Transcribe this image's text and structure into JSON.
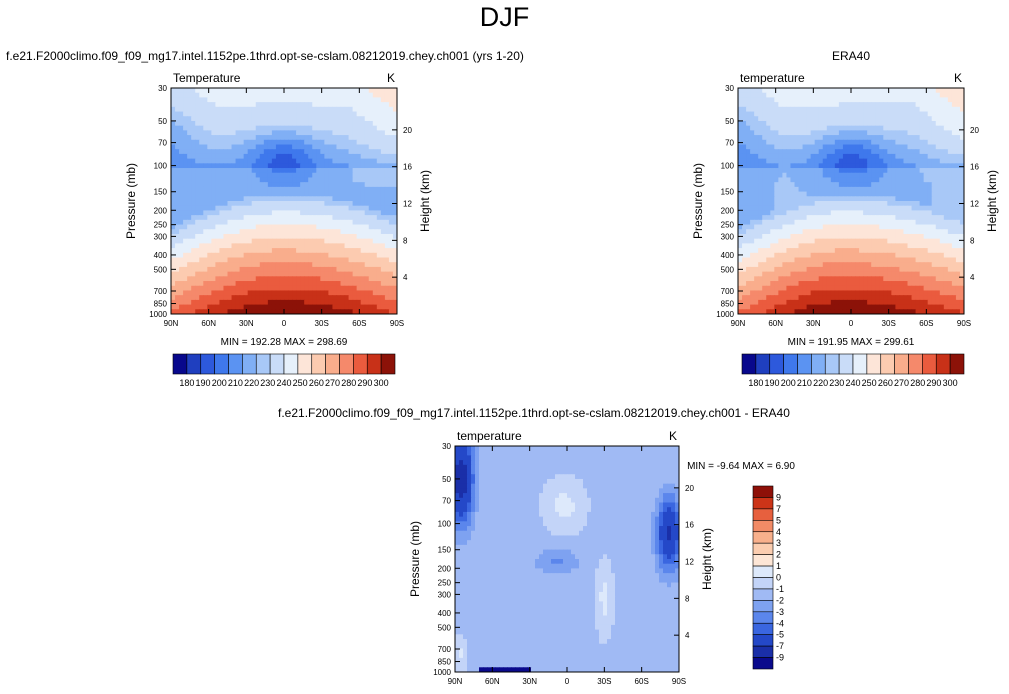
{
  "page_title": "DJF",
  "palette": {
    "temperature": [
      "#08088c",
      "#1f3fbf",
      "#2d59dc",
      "#3f78ec",
      "#5b93f2",
      "#80aff5",
      "#a8c8f7",
      "#c9dcf8",
      "#e6f0fb",
      "#fde5d8",
      "#fccbb0",
      "#f9ad8c",
      "#f5896b",
      "#ea5b3e",
      "#c83118",
      "#8c1208"
    ],
    "difference": [
      "#0a0a8c",
      "#1a2fa8",
      "#2448c8",
      "#3a66e0",
      "#5b86ec",
      "#7ea2f1",
      "#a0baf4",
      "#c3d4f8",
      "#dde9fb",
      "#fde6d6",
      "#fbcdb0",
      "#f8b08c",
      "#f28b66",
      "#e7603e",
      "#cc3418",
      "#8e1008"
    ]
  },
  "chart_data": [
    {
      "id": "model",
      "type": "heatmap",
      "subtitle": "f.e21.F2000climo.f09_f09_mg17.intel.1152pe.1thrd.opt-se-cslam.08212019.chey.ch001 (yrs 1-20)",
      "left_label": "Temperature",
      "right_label": "K",
      "ylabel": "Pressure (mb)",
      "ylabel_right": "Height (km)",
      "x_ticks": [
        "90N",
        "60N",
        "30N",
        "0",
        "30S",
        "60S",
        "90S"
      ],
      "y_ticks": [
        "30",
        "50",
        "70",
        "100",
        "150",
        "200",
        "250",
        "300",
        "400",
        "500",
        "700",
        "850",
        "1000"
      ],
      "height_ticks": [
        "20",
        "16",
        "12",
        "8",
        "4"
      ],
      "height_values": [
        20,
        16,
        12,
        8,
        4
      ],
      "min_max": "MIN = 192.28   MAX = 298.69",
      "colorbar_labels": [
        "180",
        "190",
        "200",
        "210",
        "220",
        "230",
        "240",
        "250",
        "260",
        "270",
        "280",
        "290",
        "300"
      ],
      "colorbar_levels": [
        180,
        185,
        190,
        195,
        200,
        205,
        210,
        220,
        230,
        240,
        250,
        260,
        270,
        280,
        290,
        300
      ],
      "grid": false
    },
    {
      "id": "obs",
      "type": "heatmap",
      "subtitle": "ERA40",
      "left_label": "temperature",
      "right_label": "K",
      "ylabel": "Pressure (mb)",
      "ylabel_right": "Height (km)",
      "x_ticks": [
        "90N",
        "60N",
        "30N",
        "0",
        "30S",
        "60S",
        "90S"
      ],
      "y_ticks": [
        "30",
        "50",
        "70",
        "100",
        "150",
        "200",
        "250",
        "300",
        "400",
        "500",
        "700",
        "850",
        "1000"
      ],
      "height_ticks": [
        "20",
        "16",
        "12",
        "8",
        "4"
      ],
      "height_values": [
        20,
        16,
        12,
        8,
        4
      ],
      "min_max": "MIN = 191.95   MAX = 299.61",
      "colorbar_labels": [
        "180",
        "190",
        "200",
        "210",
        "220",
        "230",
        "240",
        "250",
        "260",
        "270",
        "280",
        "290",
        "300"
      ],
      "colorbar_levels": [
        180,
        185,
        190,
        195,
        200,
        205,
        210,
        220,
        230,
        240,
        250,
        260,
        270,
        280,
        290,
        300
      ],
      "grid": false
    },
    {
      "id": "diff",
      "type": "heatmap",
      "subtitle": "f.e21.F2000climo.f09_f09_mg17.intel.1152pe.1thrd.opt-se-cslam.08212019.chey.ch001 - ERA40",
      "left_label": "temperature",
      "right_label": "K",
      "ylabel": "Pressure (mb)",
      "ylabel_right": "Height (km)",
      "x_ticks": [
        "90N",
        "60N",
        "30N",
        "0",
        "30S",
        "60S",
        "90S"
      ],
      "y_ticks": [
        "30",
        "50",
        "70",
        "100",
        "150",
        "200",
        "250",
        "300",
        "400",
        "500",
        "700",
        "850",
        "1000"
      ],
      "height_ticks": [
        "20",
        "16",
        "12",
        "8",
        "4"
      ],
      "height_values": [
        20,
        16,
        12,
        8,
        4
      ],
      "min_max": "MIN = -9.64   MAX =  6.90",
      "colorbar_labels": [
        "9",
        "7",
        "5",
        "4",
        "3",
        "2",
        "1",
        "0",
        "-1",
        "-2",
        "-3",
        "-4",
        "-5",
        "-7",
        "-9"
      ],
      "colorbar_levels": [
        -9,
        -7,
        -5,
        -4,
        -3,
        -2,
        -1,
        0,
        1,
        2,
        3,
        4,
        5,
        7,
        9
      ],
      "grid": false
    }
  ]
}
